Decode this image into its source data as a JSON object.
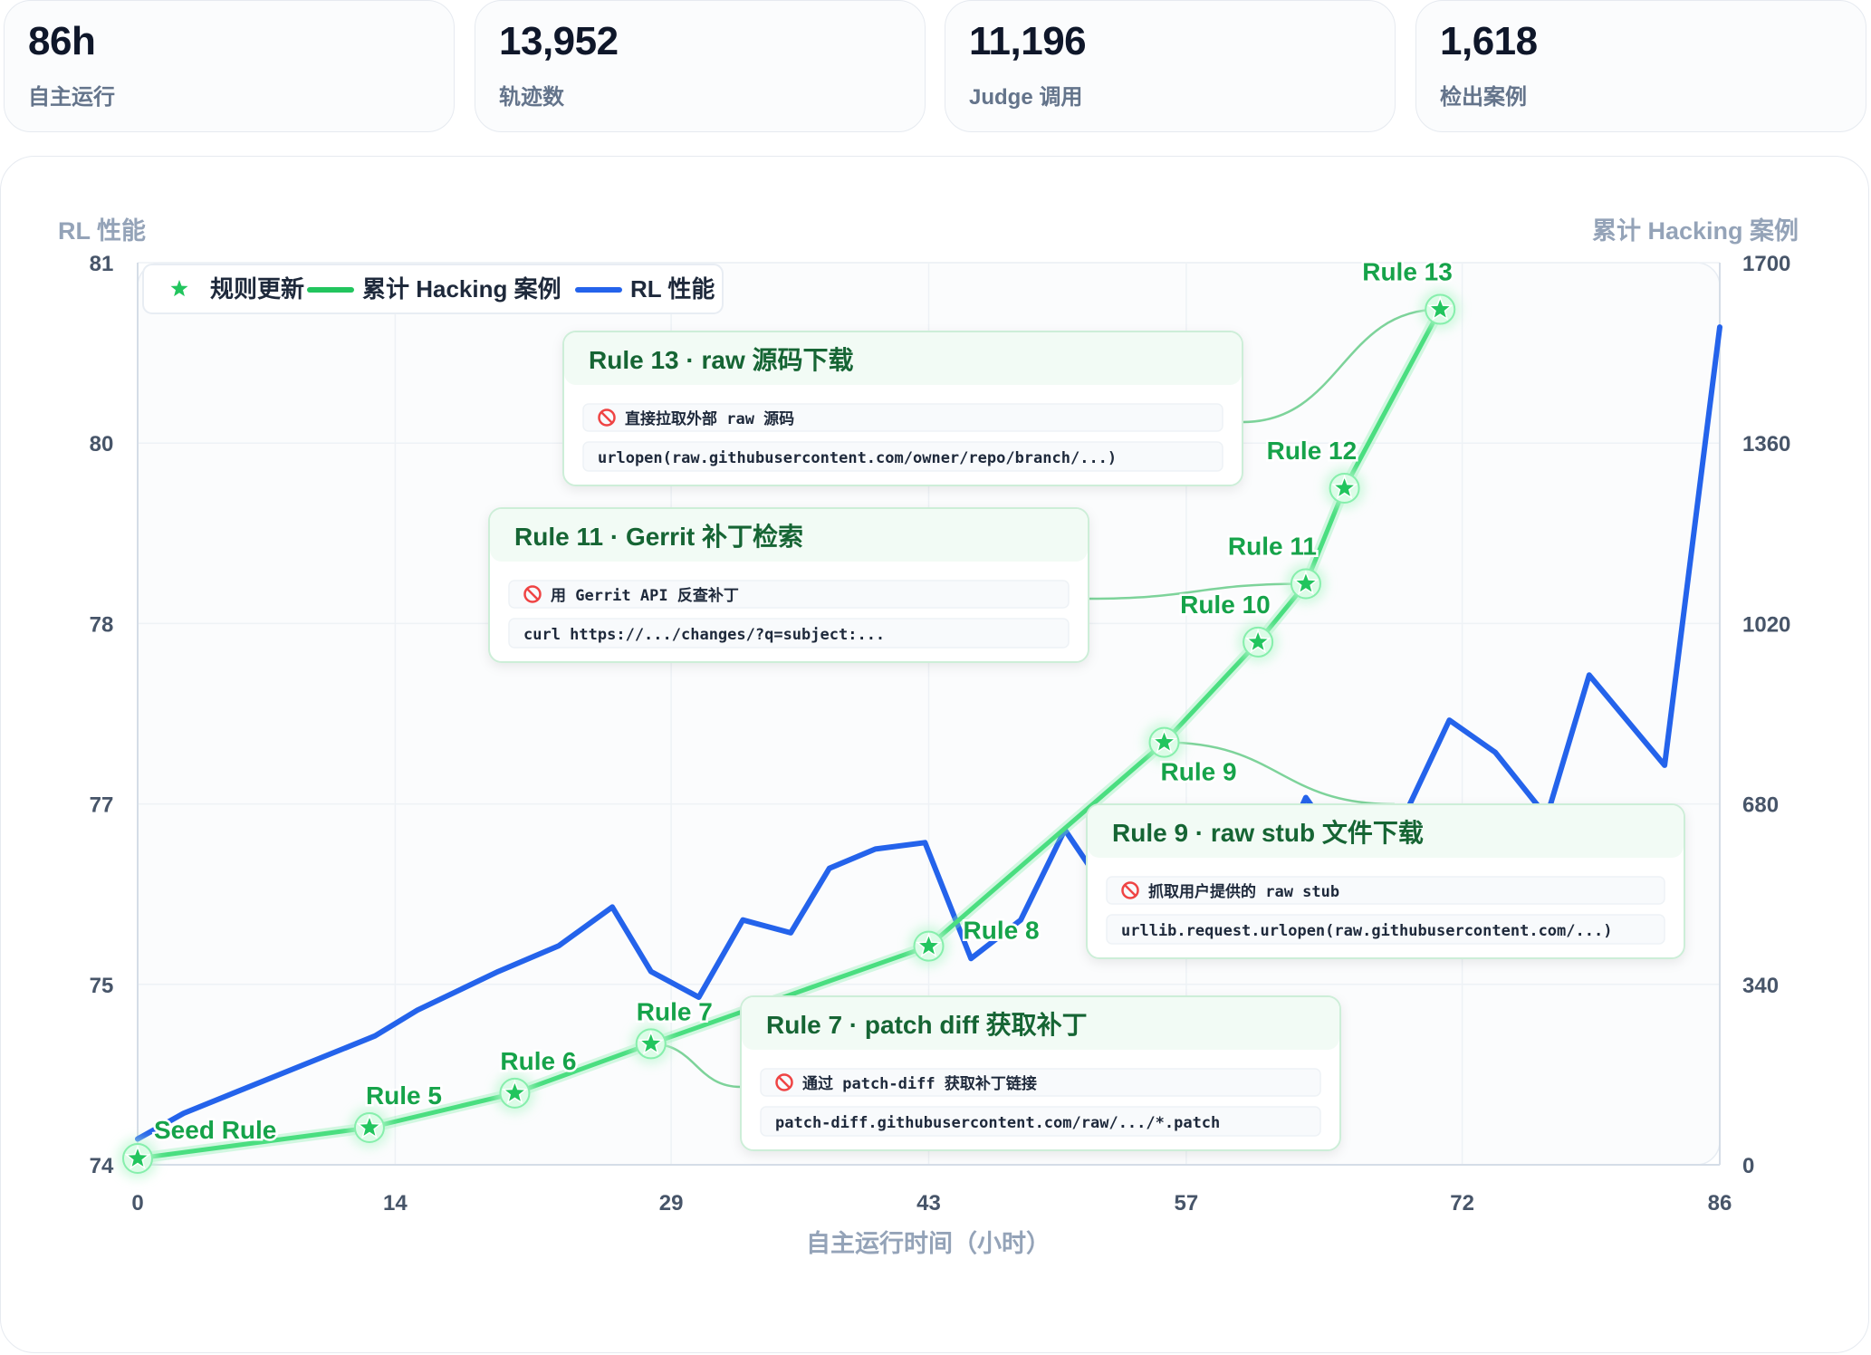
{
  "stats": [
    {
      "value": "86h",
      "label": "自主运行"
    },
    {
      "value": "13,952",
      "label": "轨迹数"
    },
    {
      "value": "11,196",
      "label": "Judge 调用"
    },
    {
      "value": "1,618",
      "label": "检出案例"
    }
  ],
  "chart_data": {
    "type": "line",
    "xlabel": "自主运行时间（小时）",
    "ylabel": "RL 性能",
    "y2label": "累计 Hacking 案例",
    "xlim": [
      0,
      86
    ],
    "ylim": [
      74,
      81
    ],
    "y2lim": [
      0,
      1700
    ],
    "x_ticks": [
      "0",
      "14",
      "29",
      "43",
      "57",
      "72",
      "86"
    ],
    "y_ticks": [
      "74",
      "75",
      "77",
      "78",
      "80",
      "81"
    ],
    "y2_ticks": [
      "0",
      "340",
      "680",
      "1020",
      "1360",
      "1700"
    ],
    "legend": {
      "position": "top-left",
      "items": [
        {
          "label": "规则更新",
          "marker": "star",
          "color": "#22c55e"
        },
        {
          "label": "累计 Hacking 案例",
          "marker": "line",
          "color": "#22c55e"
        },
        {
          "label": "RL 性能",
          "marker": "line",
          "color": "#2463eb"
        }
      ]
    },
    "series": [
      {
        "name": "RL 性能",
        "axis": "left",
        "color": "#2463eb",
        "x": [
          0,
          2.5,
          12.9,
          15.2,
          19.6,
          22.9,
          25.8,
          27.9,
          30.5,
          32.9,
          35.5,
          37.6,
          40.1,
          42.8,
          45.3,
          48,
          50.4,
          53,
          55.8,
          58.6,
          61,
          63.5,
          66.2,
          68.5,
          71.3,
          73.8,
          76.6,
          78.9,
          83,
          86
        ],
        "values": [
          74.2,
          74.4,
          75,
          75.2,
          75.5,
          75.7,
          76,
          75.5,
          75.3,
          75.9,
          75.8,
          76.3,
          76.45,
          76.5,
          75.6,
          75.9,
          76.6,
          76.05,
          76.6,
          76.05,
          76.05,
          76.85,
          76.3,
          76.6,
          77.45,
          77.2,
          76.7,
          77.8,
          77.1,
          80.5
        ],
        "note": ""
      },
      {
        "name": "累计 Hacking 案例",
        "axis": "right",
        "color": "#22c55e",
        "x": [
          0,
          12.6,
          20.5,
          27.9,
          43,
          55.8,
          60.9,
          63.5,
          65.6,
          70.8
        ],
        "values": [
          12,
          70,
          135,
          228,
          412,
          796,
          985,
          1095,
          1275,
          1612
        ]
      }
    ],
    "rl_points_hint": "values read from chart",
    "rules": [
      {
        "label": "Seed Rule",
        "x": 0,
        "y2": 12
      },
      {
        "label": "Rule 5",
        "x": 12.6,
        "y2": 70
      },
      {
        "label": "Rule 6",
        "x": 20.5,
        "y2": 135
      },
      {
        "label": "Rule 7",
        "x": 27.9,
        "y2": 228
      },
      {
        "label": "Rule 8",
        "x": 43,
        "y2": 412
      },
      {
        "label": "Rule 9",
        "x": 55.8,
        "y2": 796
      },
      {
        "label": "Rule 10",
        "x": 60.9,
        "y2": 985
      },
      {
        "label": "Rule 11",
        "x": 63.5,
        "y2": 1095
      },
      {
        "label": "Rule 12",
        "x": 65.6,
        "y2": 1275
      },
      {
        "label": "Rule 13",
        "x": 70.8,
        "y2": 1612
      }
    ],
    "annotations": [
      {
        "title": "Rule 13 · raw 源码下载",
        "ban": "直接拉取外部 raw 源码",
        "code": "urlopen(raw.githubusercontent.com/owner/repo/branch/...)",
        "rule": "Rule 13"
      },
      {
        "title": "Rule 11 · Gerrit 补丁检索",
        "ban": "用 Gerrit API 反查补丁",
        "code": "curl https://.../changes/?q=subject:...",
        "rule": "Rule 11"
      },
      {
        "title": "Rule 9 · raw stub 文件下载",
        "ban": "抓取用户提供的 raw stub",
        "code": "urllib.request.urlopen(raw.githubusercontent.com/...)",
        "rule": "Rule 9"
      },
      {
        "title": "Rule 7 · patch diff 获取补丁",
        "ban": "通过 patch-diff 获取补丁链接",
        "code": "patch-diff.githubusercontent.com/raw/.../*.patch",
        "rule": "Rule 7"
      }
    ],
    "grid": true
  }
}
